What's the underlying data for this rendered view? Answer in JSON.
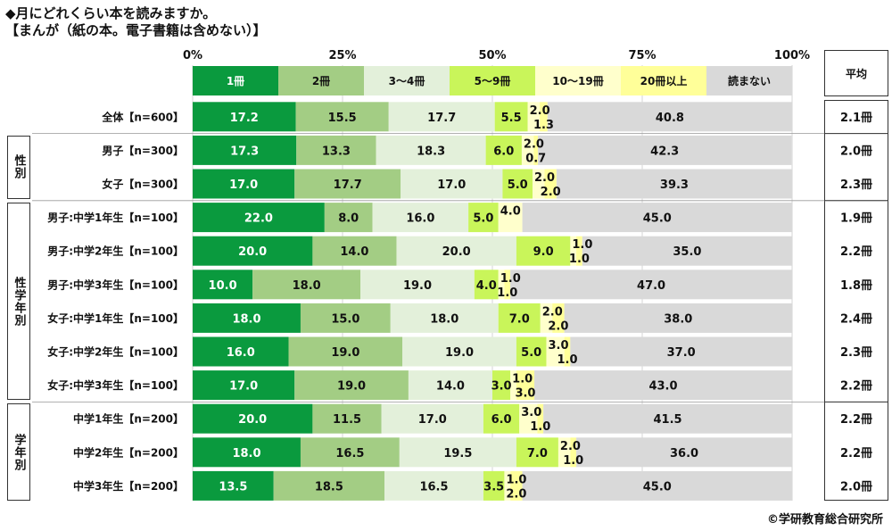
{
  "title_line1": "◆月にどれくらい本を読みますか。",
  "title_line2": "【まんが（紙の本。電子書籍は含めない）】",
  "copyright": "©学研教育総合研究所",
  "average_header": "平均",
  "groups": [
    {
      "label": "性別",
      "rows": [
        1,
        2
      ]
    },
    {
      "label": "性学年別",
      "rows": [
        3,
        8
      ]
    },
    {
      "label": "学年別",
      "rows": [
        9,
        11
      ]
    }
  ],
  "colors": [
    "#0a9a3e",
    "#a3cd84",
    "#e3f0da",
    "#c9f55a",
    "#ffffcc",
    "#ffff99",
    "#d9d9d9"
  ],
  "chart_data": {
    "type": "bar",
    "orientation": "horizontal",
    "stacked": true,
    "xlim": [
      0,
      100
    ],
    "x_ticks": [
      "0%",
      "25%",
      "50%",
      "75%",
      "100%"
    ],
    "series_names": [
      "1冊",
      "2冊",
      "3～4冊",
      "5～9冊",
      "10～19冊",
      "20冊以上",
      "読まない"
    ],
    "categories": [
      "全体【n=600】",
      "男子【n=300】",
      "女子【n=300】",
      "男子:中学1年生【n=100】",
      "男子:中学2年生【n=100】",
      "男子:中学3年生【n=100】",
      "女子:中学1年生【n=100】",
      "女子:中学2年生【n=100】",
      "女子:中学3年生【n=100】",
      "中学1年生【n=200】",
      "中学2年生【n=200】",
      "中学3年生【n=200】"
    ],
    "values": [
      [
        17.2,
        15.5,
        17.7,
        5.5,
        2.0,
        1.3,
        40.8
      ],
      [
        17.3,
        13.3,
        18.3,
        6.0,
        2.0,
        0.7,
        42.3
      ],
      [
        17.0,
        17.7,
        17.0,
        5.0,
        2.0,
        2.0,
        39.3
      ],
      [
        22.0,
        8.0,
        16.0,
        5.0,
        4.0,
        0,
        45.0
      ],
      [
        20.0,
        14.0,
        20.0,
        9.0,
        1.0,
        1.0,
        35.0
      ],
      [
        10.0,
        18.0,
        19.0,
        4.0,
        1.0,
        1.0,
        47.0
      ],
      [
        18.0,
        15.0,
        18.0,
        7.0,
        2.0,
        2.0,
        38.0
      ],
      [
        16.0,
        19.0,
        19.0,
        5.0,
        3.0,
        1.0,
        37.0
      ],
      [
        17.0,
        19.0,
        14.0,
        3.0,
        1.0,
        3.0,
        43.0
      ],
      [
        20.0,
        11.5,
        17.0,
        6.0,
        3.0,
        1.0,
        41.5
      ],
      [
        18.0,
        16.5,
        19.5,
        7.0,
        2.0,
        1.0,
        36.0
      ],
      [
        13.5,
        18.5,
        16.5,
        3.5,
        1.0,
        2.0,
        45.0
      ]
    ],
    "value_labels": [
      [
        "17.2",
        "15.5",
        "17.7",
        "5.5",
        "2.0",
        "1.3",
        "40.8"
      ],
      [
        "17.3",
        "13.3",
        "18.3",
        "6.0",
        "2.0",
        "0.7",
        "42.3"
      ],
      [
        "17.0",
        "17.7",
        "17.0",
        "5.0",
        "2.0",
        "2.0",
        "39.3"
      ],
      [
        "22.0",
        "8.0",
        "16.0",
        "5.0",
        "4.0",
        "",
        "45.0"
      ],
      [
        "20.0",
        "14.0",
        "20.0",
        "9.0",
        "1.0",
        "1.0",
        "35.0"
      ],
      [
        "10.0",
        "18.0",
        "19.0",
        "4.0",
        "1.0",
        "1.0",
        "47.0"
      ],
      [
        "18.0",
        "15.0",
        "18.0",
        "7.0",
        "2.0",
        "2.0",
        "38.0"
      ],
      [
        "16.0",
        "19.0",
        "19.0",
        "5.0",
        "3.0",
        "1.0",
        "37.0"
      ],
      [
        "17.0",
        "19.0",
        "14.0",
        "3.0",
        "1.0",
        "3.0",
        "43.0"
      ],
      [
        "20.0",
        "11.5",
        "17.0",
        "6.0",
        "3.0",
        "1.0",
        "41.5"
      ],
      [
        "18.0",
        "16.5",
        "19.5",
        "7.0",
        "2.0",
        "1.0",
        "36.0"
      ],
      [
        "13.5",
        "18.5",
        "16.5",
        "3.5",
        "1.0",
        "2.0",
        "45.0"
      ]
    ],
    "averages": [
      "2.1冊",
      "2.0冊",
      "2.3冊",
      "1.9冊",
      "2.2冊",
      "1.8冊",
      "2.4冊",
      "2.3冊",
      "2.2冊",
      "2.2冊",
      "2.2冊",
      "2.0冊"
    ]
  }
}
